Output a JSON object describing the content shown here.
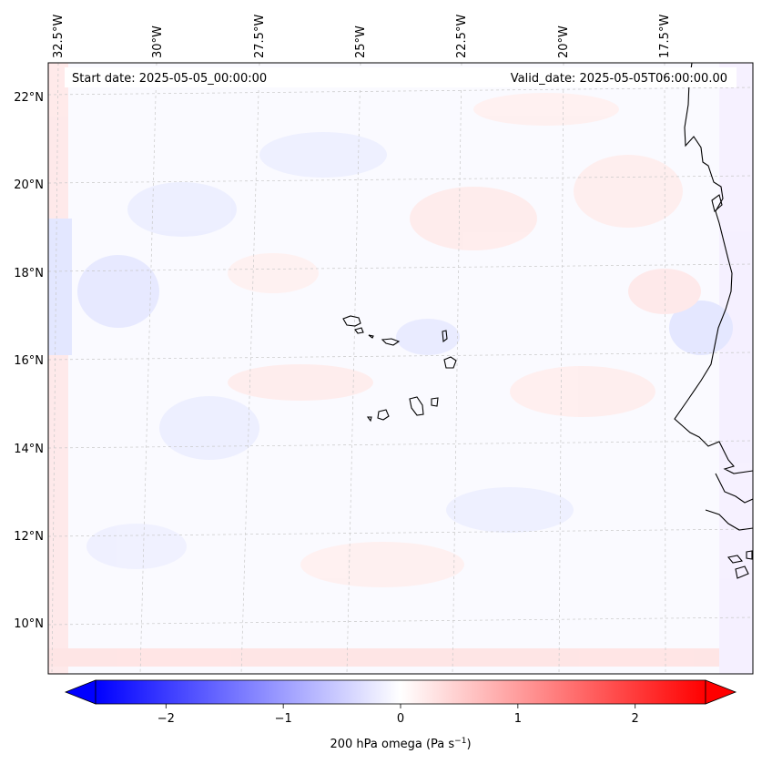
{
  "header": {
    "start_date": "Start date: 2025-05-05_00:00:00",
    "valid_date": "Valid_date: 2025-05-05T06:00:00.00"
  },
  "axes": {
    "lon_labels": [
      "32.5°W",
      "30°W",
      "27.5°W",
      "25°W",
      "22.5°W",
      "20°W",
      "17.5°W"
    ],
    "lat_labels": [
      "22°N",
      "20°N",
      "18°N",
      "16°N",
      "14°N",
      "12°N",
      "10°N"
    ]
  },
  "colorbar": {
    "label_main": "200 hPa omega (Pa s",
    "label_exp": "−1",
    "label_end": ")",
    "ticks": [
      "−2",
      "−1",
      "0",
      "1",
      "2"
    ],
    "tick_values": [
      -2,
      -1,
      0,
      1,
      2
    ],
    "range": [
      -2.6,
      2.6
    ],
    "colors": {
      "negative": "#0000ff",
      "zero": "#ffffff",
      "positive": "#ff0000"
    }
  },
  "chart_data": {
    "type": "heatmap",
    "variable": "200 hPa omega",
    "units": "Pa s^-1",
    "lon_range": [
      -33,
      -16
    ],
    "lat_range": [
      9,
      22.7
    ],
    "value_range": [
      -2.6,
      2.6
    ],
    "colormap": "bwr",
    "gridlines": true,
    "coastlines": true
  }
}
